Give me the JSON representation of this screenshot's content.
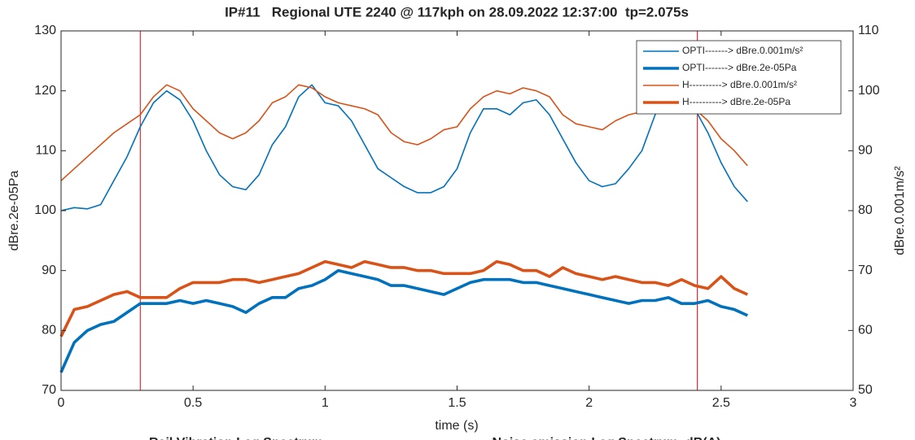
{
  "chart_data": {
    "type": "line",
    "title": "IP#11   Regional UTE 2240 @ 117kph on 28.09.2022 12:37:00  tp=2.075s",
    "xlabel": "time (s)",
    "ylabel": "dBre.2e-05Pa",
    "y2label": "dBre.0.001m/s²",
    "xlim": [
      0,
      3
    ],
    "xticks": [
      0,
      0.5,
      1,
      1.5,
      2,
      2.5,
      3
    ],
    "ylim": [
      70,
      130
    ],
    "yticks": [
      70,
      80,
      90,
      100,
      110,
      120,
      130
    ],
    "y2lim": [
      50,
      110
    ],
    "y2ticks": [
      50,
      60,
      70,
      80,
      90,
      100,
      110
    ],
    "legend": "upper right",
    "vlines": [
      0.3,
      2.41
    ],
    "vline_color": "#e8000b",
    "footer_labels": [
      "Rail Vibration Leq Spectrum",
      "Noise emission Leq Spectrum  dB(A)"
    ],
    "x": [
      0,
      0.05,
      0.1,
      0.15,
      0.2,
      0.25,
      0.3,
      0.35,
      0.4,
      0.45,
      0.5,
      0.55,
      0.6,
      0.65,
      0.7,
      0.75,
      0.8,
      0.85,
      0.9,
      0.95,
      1,
      1.05,
      1.1,
      1.15,
      1.2,
      1.25,
      1.3,
      1.35,
      1.4,
      1.45,
      1.5,
      1.55,
      1.6,
      1.65,
      1.7,
      1.75,
      1.8,
      1.85,
      1.9,
      1.95,
      2,
      2.05,
      2.1,
      2.15,
      2.2,
      2.25,
      2.3,
      2.35,
      2.4,
      2.45,
      2.5,
      2.55,
      2.6
    ],
    "series": [
      {
        "name": "OPTI-------> dBre.0.001m/s²",
        "color": "#0072bd",
        "line_width": 1.6,
        "axis": "y2",
        "values": [
          80,
          80.5,
          80.3,
          81,
          85,
          89,
          94,
          98,
          100,
          98.5,
          95,
          90,
          86,
          84,
          83.5,
          86,
          91,
          94,
          99,
          101,
          98,
          97.5,
          95,
          91,
          87,
          85.5,
          84,
          83,
          83,
          84,
          87,
          93,
          97,
          97,
          96,
          98,
          98.5,
          96,
          92,
          88,
          85,
          84,
          84.5,
          87,
          90,
          96,
          100,
          99,
          97,
          93,
          88,
          84,
          81.5
        ]
      },
      {
        "name": "OPTI-------> dBre.2e-05Pa",
        "color": "#0072bd",
        "line_width": 3.6,
        "axis": "y",
        "values": [
          73,
          78,
          80,
          81,
          81.5,
          83,
          84.5,
          84.5,
          84.5,
          85,
          84.5,
          85,
          84.5,
          84,
          83,
          84.5,
          85.5,
          85.5,
          87,
          87.5,
          88.5,
          90,
          89.5,
          89,
          88.5,
          87.5,
          87.5,
          87,
          86.5,
          86,
          87,
          88,
          88.5,
          88.5,
          88.5,
          88,
          88,
          87.5,
          87,
          86.5,
          86,
          85.5,
          85,
          84.5,
          85,
          85,
          85.5,
          84.5,
          84.5,
          85,
          84,
          83.5,
          82.5
        ]
      },
      {
        "name": "H----------> dBre.0.001m/s²",
        "color": "#d95319",
        "line_width": 1.6,
        "axis": "y2",
        "values": [
          85,
          87,
          89,
          91,
          93,
          94.5,
          96,
          99,
          101,
          100,
          97,
          95,
          93,
          92,
          93,
          95,
          98,
          99,
          101,
          100.5,
          99,
          98,
          97.5,
          97,
          96,
          93,
          91.5,
          91,
          92,
          93.5,
          94,
          97,
          99,
          100,
          99.5,
          100.5,
          100,
          99,
          96,
          94.5,
          94,
          93.5,
          95,
          96,
          96.5,
          97.5,
          98,
          98,
          97,
          95,
          92,
          90,
          87.5
        ]
      },
      {
        "name": "H----------> dBre.2e-05Pa",
        "color": "#d95319",
        "line_width": 3.6,
        "axis": "y",
        "values": [
          79,
          83.5,
          84,
          85,
          86,
          86.5,
          85.5,
          85.5,
          85.5,
          87,
          88,
          88,
          88,
          88.5,
          88.5,
          88,
          88.5,
          89,
          89.5,
          90.5,
          91.5,
          91,
          90.5,
          91.5,
          91,
          90.5,
          90.5,
          90,
          90,
          89.5,
          89.5,
          89.5,
          90,
          91.5,
          91,
          90,
          90,
          89,
          90.5,
          89.5,
          89,
          88.5,
          89,
          88.5,
          88,
          88,
          87.5,
          88.5,
          87.5,
          87,
          89,
          87,
          86
        ]
      }
    ]
  }
}
